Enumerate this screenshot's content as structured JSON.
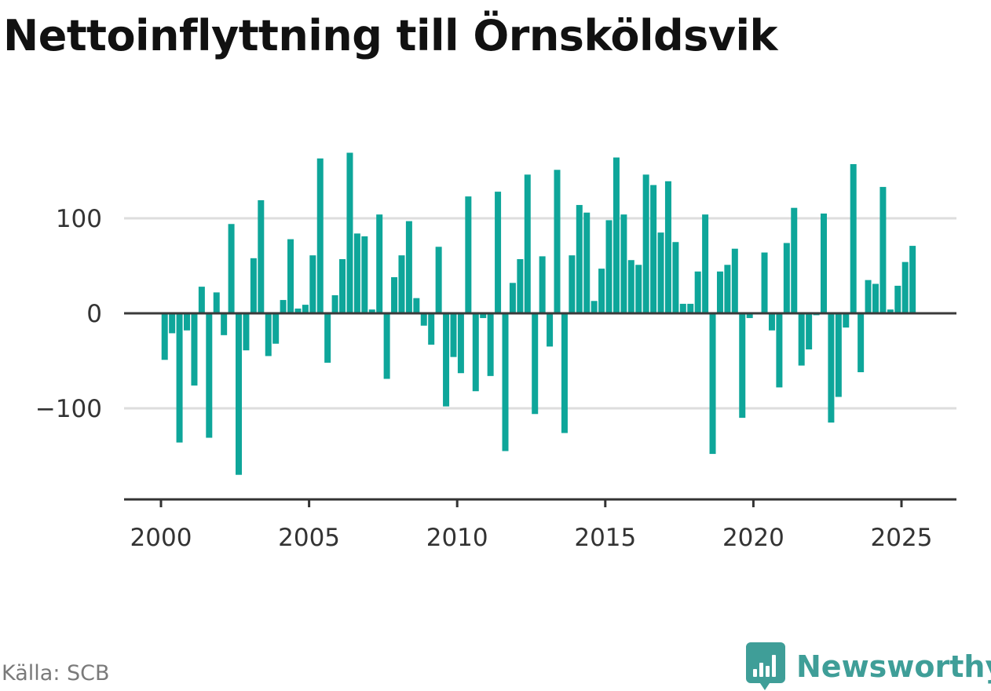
{
  "chart_data": {
    "type": "bar",
    "title": "Nettoinflyttning till Örnsköldsvik",
    "source": "Källa: SCB",
    "brand": "Newsworthy",
    "bar_color": "#0ea69a",
    "grid": true,
    "x_ticks": [
      2000,
      2005,
      2010,
      2015,
      2020,
      2025
    ],
    "y_ticks": [
      {
        "value": 100,
        "label": "100"
      },
      {
        "value": 0,
        "label": "0"
      },
      {
        "value": -100,
        "label": "−100"
      }
    ],
    "ylim": [
      -195,
      195
    ],
    "x_start": 2000.125,
    "x_step": 0.25,
    "values": [
      -49,
      -21,
      -136,
      -18,
      -76,
      28,
      -131,
      22,
      -23,
      94,
      -170,
      -39,
      58,
      119,
      -45,
      -32,
      14,
      78,
      5,
      9,
      61,
      163,
      -52,
      19,
      57,
      169,
      84,
      81,
      4,
      104,
      -69,
      38,
      61,
      97,
      16,
      -13,
      -33,
      70,
      -98,
      -46,
      -63,
      123,
      -82,
      -5,
      -66,
      128,
      -145,
      32,
      57,
      146,
      -106,
      60,
      -35,
      151,
      -126,
      61,
      114,
      106,
      13,
      47,
      98,
      164,
      104,
      56,
      51,
      146,
      135,
      85,
      139,
      75,
      10,
      10,
      44,
      104,
      -148,
      44,
      51,
      68,
      -110,
      -5,
      0,
      64,
      -18,
      -78,
      74,
      111,
      -55,
      -38,
      -2,
      105,
      -115,
      -88,
      -15,
      157,
      -62,
      35,
      31,
      133,
      4,
      29,
      54,
      71
    ]
  }
}
